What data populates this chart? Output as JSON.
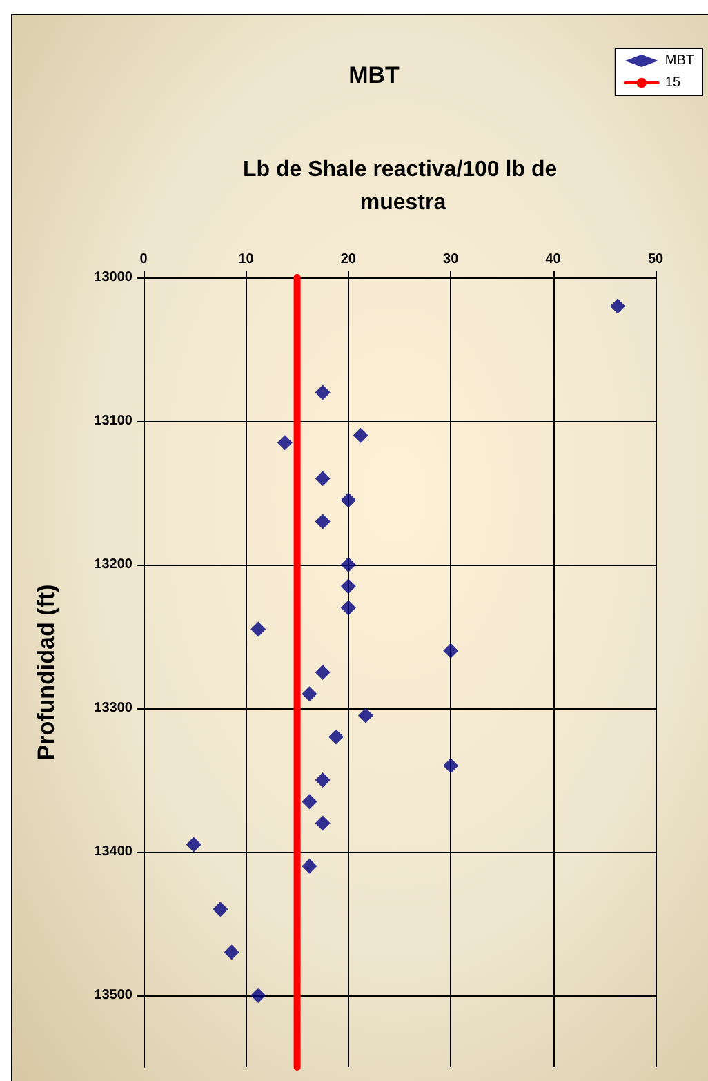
{
  "chart_data": {
    "type": "scatter",
    "title": "MBT",
    "xlabel": "Lb de Shale reactiva/100 lb de muestra",
    "ylabel": "Profundidad (ft)",
    "xlim": [
      0,
      50
    ],
    "xticks": [
      0,
      10,
      20,
      30,
      40,
      50
    ],
    "ylim": [
      13550,
      13000
    ],
    "yticks": [
      13000,
      13100,
      13200,
      13300,
      13400,
      13500
    ],
    "grid": true,
    "legend": "top right",
    "marker": "diamond",
    "series": [
      {
        "name": "MBT",
        "color": "#000080",
        "x": [
          46.3,
          17.5,
          13.8,
          21.2,
          17.5,
          20,
          17.5,
          20,
          20,
          20,
          11.2,
          30,
          17.5,
          16.2,
          21.7,
          18.8,
          30,
          17.5,
          16.2,
          17.5,
          4.9,
          16.2,
          7.5,
          8.6,
          11.2
        ],
        "values": [
          13020,
          13080,
          13115,
          13110,
          13140,
          13155,
          13170,
          13200,
          13215,
          13230,
          13245,
          13260,
          13275,
          13290,
          13305,
          13320,
          13340,
          13350,
          13365,
          13380,
          13395,
          13410,
          13440,
          13470,
          13500
        ]
      },
      {
        "name": "15",
        "type": "line",
        "marker": "none",
        "color": "#ff0000",
        "x": [
          15,
          15
        ],
        "values": [
          13000,
          13550
        ]
      }
    ]
  }
}
